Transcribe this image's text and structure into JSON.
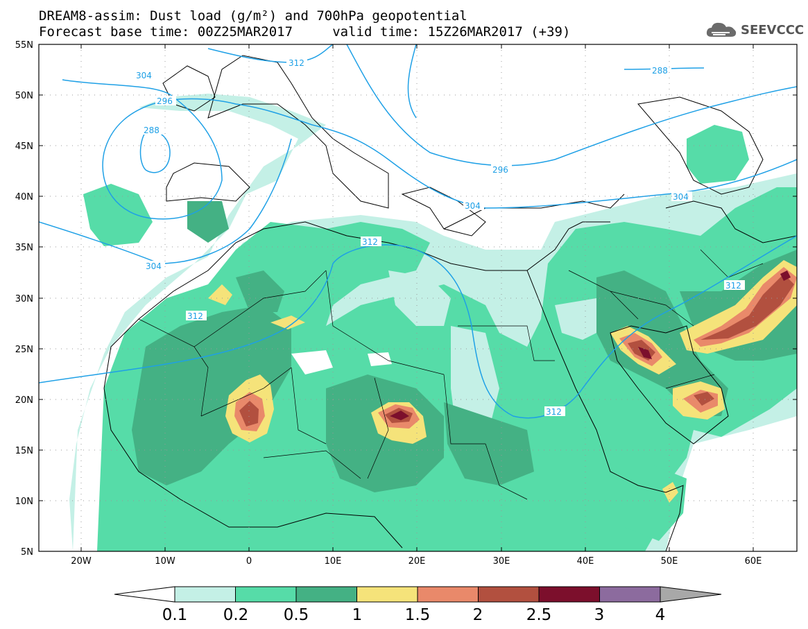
{
  "header": {
    "line1": "DREAM8-assim: Dust load (g/m²) and 700hPa geopotential",
    "line2": "Forecast base time: 00Z25MAR2017     valid time: 15Z26MAR2017 (+39)"
  },
  "logo": {
    "text": "SEEVCCC",
    "icon": "cloud-icon"
  },
  "map": {
    "lat_labels": [
      "55N",
      "50N",
      "45N",
      "40N",
      "35N",
      "30N",
      "25N",
      "20N",
      "15N",
      "10N",
      "5N"
    ],
    "lon_labels": [
      "20W",
      "10W",
      "0",
      "10E",
      "20E",
      "30E",
      "40E",
      "50E",
      "60E"
    ],
    "contour_labels": [
      "312",
      "304",
      "296",
      "288",
      "288",
      "296",
      "304",
      "312",
      "304",
      "312",
      "312",
      "312",
      "304"
    ]
  },
  "colorbar": {
    "labels": [
      "0.1",
      "0.2",
      "0.5",
      "1",
      "1.5",
      "2",
      "2.5",
      "3",
      "4"
    ],
    "colors": [
      "#c4f0e6",
      "#56dca8",
      "#44b184",
      "#f5e37a",
      "#e9896a",
      "#b2503f",
      "#7c0f2c",
      "#8c6b9e",
      "#a8a8a8"
    ]
  }
}
